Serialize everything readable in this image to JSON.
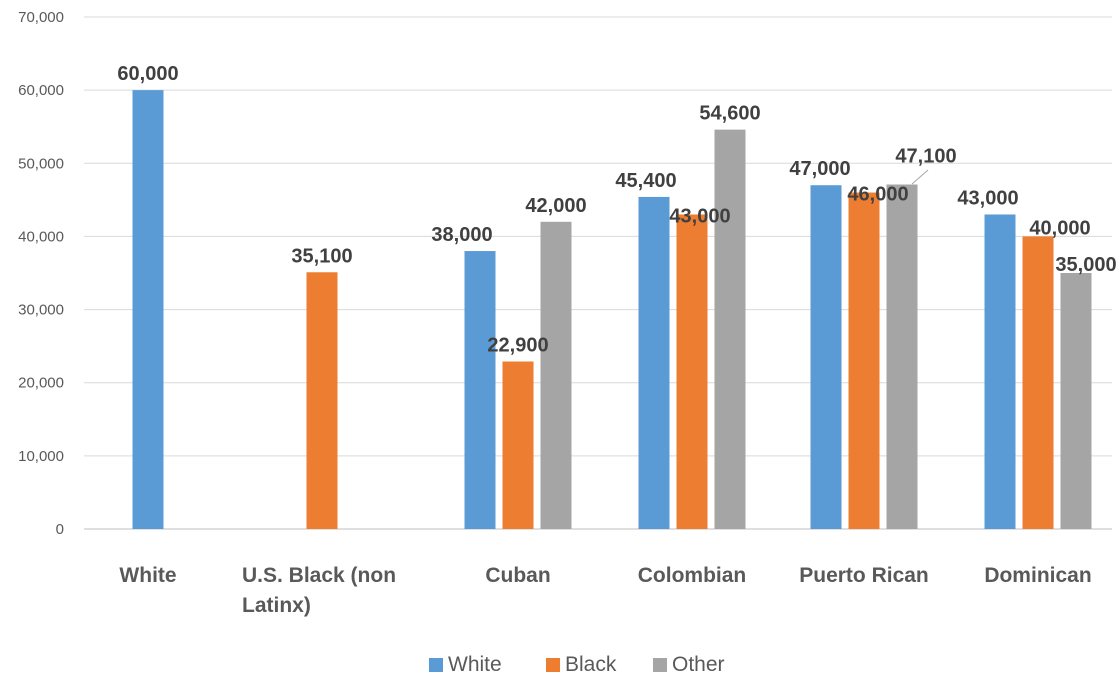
{
  "chart_data": {
    "type": "bar",
    "title": "",
    "xlabel": "",
    "ylabel": "",
    "ylim": [
      0,
      70000
    ],
    "yticks": [
      0,
      10000,
      20000,
      30000,
      40000,
      50000,
      60000,
      70000
    ],
    "ytick_labels": [
      "0",
      "10,000",
      "20,000",
      "30,000",
      "40,000",
      "50,000",
      "60,000",
      "70,000"
    ],
    "grid": true,
    "legend_position": "bottom",
    "categories": [
      {
        "name": "cat-white",
        "lines": [
          "White"
        ]
      },
      {
        "name": "cat-us-black",
        "lines": [
          "U.S. Black (non",
          "Latinx)"
        ]
      },
      {
        "name": "cat-cuban",
        "lines": [
          "Cuban"
        ]
      },
      {
        "name": "cat-colombian",
        "lines": [
          "Colombian"
        ]
      },
      {
        "name": "cat-puerto-rican",
        "lines": [
          "Puerto Rican"
        ]
      },
      {
        "name": "cat-dominican",
        "lines": [
          "Dominican"
        ]
      }
    ],
    "series": [
      {
        "name": "White",
        "color": "#5B9BD5",
        "values": [
          60000,
          null,
          38000,
          45400,
          47000,
          43000
        ],
        "labels": [
          "60,000",
          null,
          "38,000",
          "45,400",
          "47,000",
          "43,000"
        ]
      },
      {
        "name": "Black",
        "color": "#ED7D31",
        "values": [
          null,
          35100,
          22900,
          43000,
          46000,
          40000
        ],
        "labels": [
          null,
          "35,100",
          "22,900",
          "43,000",
          "46,000",
          "40,000"
        ]
      },
      {
        "name": "Other",
        "color": "#A5A5A5",
        "values": [
          null,
          null,
          42000,
          54600,
          47100,
          35000
        ],
        "labels": [
          null,
          null,
          "42,000",
          "54,600",
          "47,100",
          "35,000"
        ]
      }
    ]
  }
}
